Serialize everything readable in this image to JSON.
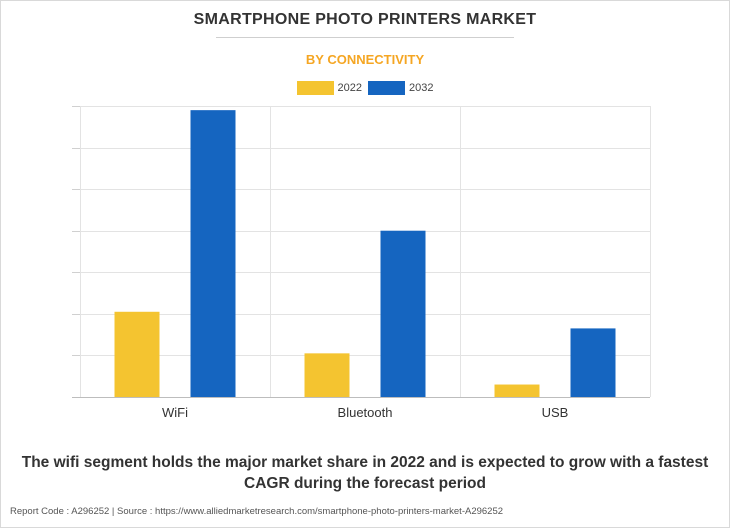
{
  "title": "SMARTPHONE PHOTO PRINTERS MARKET",
  "subtitle": "BY CONNECTIVITY",
  "caption": "The wifi segment holds the major market share in 2022 and is expected to grow with a fastest CAGR during the forecast period",
  "source": "Report Code : A296252  |  Source : https://www.alliedmarketresearch.com/smartphone-photo-printers-market-A296252",
  "colors": {
    "accent": "#f5a623",
    "y2022": "#f4c430",
    "y2032": "#1565c0"
  },
  "chart_data": {
    "type": "bar",
    "title": "SMARTPHONE PHOTO PRINTERS MARKET",
    "subtitle": "BY CONNECTIVITY",
    "categories": [
      "WiFi",
      "Bluetooth",
      "USB"
    ],
    "series": [
      {
        "name": "2022",
        "values": [
          2.05,
          1.05,
          0.3
        ]
      },
      {
        "name": "2032",
        "values": [
          6.9,
          4.0,
          1.65
        ]
      }
    ],
    "ylim": [
      0,
      7
    ],
    "y_tick_labels_shown": false,
    "grid": true,
    "legend_position": "top-center"
  }
}
